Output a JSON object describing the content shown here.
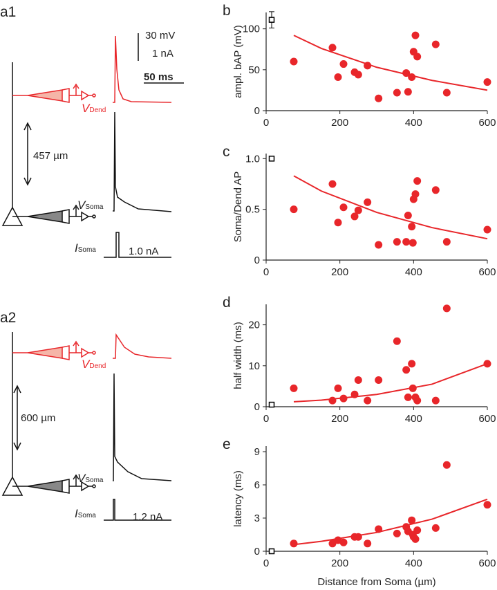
{
  "traces": {
    "a1": {
      "label": "a1",
      "scale_mv": "30 mV",
      "scale_na": "1 nA",
      "scale_ms": "50 ms",
      "v_dend": "V",
      "v_dend_sub": "Dend",
      "distance": "457 µm",
      "v_soma": "V",
      "v_soma_sub": "Soma",
      "i_soma": "I",
      "i_soma_sub": "Soma",
      "current": "1.0 nA"
    },
    "a2": {
      "label": "a2",
      "v_dend": "V",
      "v_dend_sub": "Dend",
      "distance": "600 µm",
      "v_soma": "V",
      "v_soma_sub": "Soma",
      "i_soma": "I",
      "i_soma_sub": "Soma",
      "current": "1.2 nA"
    }
  },
  "chart_data": [
    {
      "type": "scatter",
      "panel": "b",
      "ylabel": "ampl. bAP (mV)",
      "xlim": [
        0,
        600
      ],
      "xticks": [
        0,
        200,
        400,
        600
      ],
      "ylim": [
        0,
        120
      ],
      "yticks": [
        0,
        50,
        100
      ],
      "series": [
        {
          "marker": "circle",
          "color": "#e8262a",
          "x": [
            75,
            180,
            195,
            210,
            240,
            250,
            275,
            305,
            355,
            380,
            385,
            395,
            400,
            405,
            410,
            460,
            490,
            600
          ],
          "values": [
            60,
            77,
            41,
            57,
            47,
            44,
            55,
            15,
            22,
            46,
            23,
            41,
            72,
            92,
            66,
            81,
            22,
            35
          ]
        },
        {
          "marker": "square",
          "color": "#000000",
          "x": [
            15
          ],
          "values": [
            111
          ],
          "errors": [
            10
          ]
        },
        {
          "marker": "line",
          "color": "#e8262a",
          "x": [
            75,
            150,
            300,
            450,
            600
          ],
          "values": [
            92,
            76,
            53,
            37,
            25
          ]
        }
      ]
    },
    {
      "type": "scatter",
      "panel": "c",
      "ylabel": "Soma/Dend AP",
      "xlim": [
        0,
        600
      ],
      "xticks": [
        0,
        200,
        400,
        600
      ],
      "ylim": [
        0,
        1.05
      ],
      "yticks": [
        0,
        0.5,
        {
          "value": 1,
          "label": "1.0"
        }
      ],
      "series": [
        {
          "marker": "circle",
          "color": "#e8262a",
          "x": [
            75,
            180,
            195,
            210,
            240,
            250,
            275,
            305,
            355,
            380,
            385,
            395,
            398,
            400,
            405,
            410,
            460,
            490,
            600
          ],
          "values": [
            0.5,
            0.75,
            0.37,
            0.52,
            0.43,
            0.49,
            0.57,
            0.15,
            0.18,
            0.18,
            0.44,
            0.33,
            0.17,
            0.6,
            0.65,
            0.78,
            0.69,
            0.18,
            0.3
          ]
        },
        {
          "marker": "square",
          "color": "#000000",
          "x": [
            15
          ],
          "values": [
            1
          ]
        },
        {
          "marker": "line",
          "color": "#e8262a",
          "x": [
            75,
            150,
            300,
            450,
            600
          ],
          "values": [
            0.83,
            0.68,
            0.47,
            0.32,
            0.21
          ]
        }
      ]
    },
    {
      "type": "scatter",
      "panel": "d",
      "ylabel": "half width (ms)",
      "xlim": [
        0,
        600
      ],
      "xticks": [
        0,
        200,
        400,
        600
      ],
      "ylim": [
        0,
        25
      ],
      "yticks": [
        0,
        10,
        20
      ],
      "series": [
        {
          "marker": "circle",
          "color": "#e8262a",
          "x": [
            75,
            180,
            195,
            210,
            240,
            250,
            275,
            305,
            355,
            380,
            385,
            395,
            398,
            405,
            410,
            460,
            490,
            600
          ],
          "values": [
            4.5,
            1.5,
            4.5,
            2,
            3,
            6.5,
            1.5,
            6.5,
            16,
            9,
            2.3,
            10.5,
            4.5,
            2.3,
            1.5,
            1.5,
            24,
            10.5
          ]
        },
        {
          "marker": "square",
          "color": "#000000",
          "x": [
            15
          ],
          "values": [
            0.5
          ]
        },
        {
          "marker": "line",
          "color": "#e8262a",
          "x": [
            75,
            150,
            300,
            450,
            600
          ],
          "values": [
            1.2,
            1.6,
            3,
            5.5,
            10.5
          ]
        }
      ]
    },
    {
      "type": "scatter",
      "panel": "e",
      "ylabel": "latency (ms)",
      "xlabel": "Distance from Soma (µm)",
      "xlim": [
        0,
        600
      ],
      "xticks": [
        0,
        200,
        400,
        600
      ],
      "ylim": [
        0,
        9.5
      ],
      "yticks": [
        0,
        3,
        6,
        9
      ],
      "series": [
        {
          "marker": "circle",
          "color": "#e8262a",
          "x": [
            75,
            180,
            195,
            210,
            240,
            250,
            275,
            305,
            355,
            380,
            385,
            395,
            398,
            400,
            405,
            410,
            460,
            490,
            600
          ],
          "values": [
            0.7,
            0.7,
            1.0,
            0.8,
            1.3,
            1.3,
            0.7,
            2.0,
            1.6,
            2.2,
            1.8,
            2.8,
            1.5,
            1.3,
            1.1,
            1.9,
            2.1,
            7.8,
            4.2
          ]
        },
        {
          "marker": "square",
          "color": "#000000",
          "x": [
            15
          ],
          "values": [
            0
          ]
        },
        {
          "marker": "line",
          "color": "#e8262a",
          "x": [
            75,
            150,
            300,
            450,
            600
          ],
          "values": [
            0.6,
            0.9,
            1.7,
            2.9,
            4.7
          ]
        }
      ]
    }
  ]
}
